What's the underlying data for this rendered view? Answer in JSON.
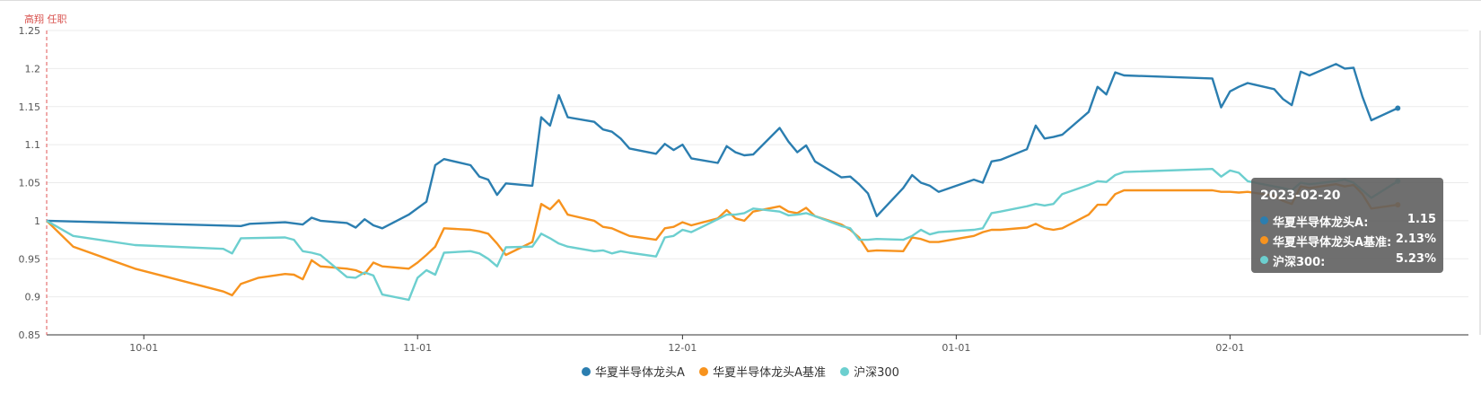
{
  "chart_data": {
    "type": "line",
    "title": "",
    "xlabel": "",
    "ylabel": "",
    "ylim": [
      0.85,
      1.25
    ],
    "yticks": [
      "1.25",
      "1.2",
      "1.15",
      "1.1",
      "1.05",
      "1",
      "0.95",
      "0.9",
      "0.85"
    ],
    "xticks": [
      "10-01",
      "11-01",
      "12-01",
      "01-01",
      "02-01"
    ],
    "xrange": [
      "2022-09-20",
      "2023-02-28"
    ],
    "grid": true,
    "legend_position": "bottom-center",
    "manager_annotation": {
      "date": "2022-09-20",
      "label": "高翔 任职"
    },
    "series": [
      {
        "name": "华夏半导体龙头A",
        "color": "#2b7eb0",
        "points": [
          [
            "2022-09-20",
            1.0
          ],
          [
            "2022-10-12",
            0.993
          ],
          [
            "2022-10-13",
            0.996
          ],
          [
            "2022-10-17",
            0.998
          ],
          [
            "2022-10-19",
            0.995
          ],
          [
            "2022-10-20",
            1.004
          ],
          [
            "2022-10-21",
            1.0
          ],
          [
            "2022-10-24",
            0.997
          ],
          [
            "2022-10-25",
            0.991
          ],
          [
            "2022-10-26",
            1.002
          ],
          [
            "2022-10-27",
            0.994
          ],
          [
            "2022-10-28",
            0.99
          ],
          [
            "2022-10-31",
            1.008
          ],
          [
            "2022-11-02",
            1.025
          ],
          [
            "2022-11-03",
            1.073
          ],
          [
            "2022-11-04",
            1.081
          ],
          [
            "2022-11-07",
            1.073
          ],
          [
            "2022-11-08",
            1.058
          ],
          [
            "2022-11-09",
            1.054
          ],
          [
            "2022-11-10",
            1.034
          ],
          [
            "2022-11-11",
            1.049
          ],
          [
            "2022-11-14",
            1.046
          ],
          [
            "2022-11-15",
            1.136
          ],
          [
            "2022-11-16",
            1.125
          ],
          [
            "2022-11-17",
            1.165
          ],
          [
            "2022-11-18",
            1.136
          ],
          [
            "2022-11-21",
            1.13
          ],
          [
            "2022-11-22",
            1.12
          ],
          [
            "2022-11-23",
            1.117
          ],
          [
            "2022-11-24",
            1.108
          ],
          [
            "2022-11-25",
            1.095
          ],
          [
            "2022-11-28",
            1.088
          ],
          [
            "2022-11-29",
            1.101
          ],
          [
            "2022-11-30",
            1.093
          ],
          [
            "2022-12-01",
            1.1
          ],
          [
            "2022-12-02",
            1.082
          ],
          [
            "2022-12-05",
            1.076
          ],
          [
            "2022-12-06",
            1.098
          ],
          [
            "2022-12-07",
            1.09
          ],
          [
            "2022-12-08",
            1.086
          ],
          [
            "2022-12-09",
            1.087
          ],
          [
            "2022-12-12",
            1.122
          ],
          [
            "2022-12-13",
            1.104
          ],
          [
            "2022-12-14",
            1.09
          ],
          [
            "2022-12-15",
            1.099
          ],
          [
            "2022-12-16",
            1.078
          ],
          [
            "2022-12-19",
            1.057
          ],
          [
            "2022-12-20",
            1.058
          ],
          [
            "2022-12-21",
            1.048
          ],
          [
            "2022-12-22",
            1.036
          ],
          [
            "2022-12-23",
            1.006
          ],
          [
            "2022-12-26",
            1.043
          ],
          [
            "2022-12-27",
            1.06
          ],
          [
            "2022-12-28",
            1.05
          ],
          [
            "2022-12-29",
            1.046
          ],
          [
            "2022-12-30",
            1.038
          ],
          [
            "2023-01-03",
            1.054
          ],
          [
            "2023-01-04",
            1.05
          ],
          [
            "2023-01-05",
            1.078
          ],
          [
            "2023-01-06",
            1.08
          ],
          [
            "2023-01-09",
            1.094
          ],
          [
            "2023-01-10",
            1.125
          ],
          [
            "2023-01-11",
            1.108
          ],
          [
            "2023-01-12",
            1.11
          ],
          [
            "2023-01-13",
            1.113
          ],
          [
            "2023-01-16",
            1.143
          ],
          [
            "2023-01-17",
            1.176
          ],
          [
            "2023-01-18",
            1.166
          ],
          [
            "2023-01-19",
            1.195
          ],
          [
            "2023-01-20",
            1.191
          ],
          [
            "2023-01-30",
            1.187
          ],
          [
            "2023-01-31",
            1.149
          ],
          [
            "2023-02-01",
            1.17
          ],
          [
            "2023-02-02",
            1.176
          ],
          [
            "2023-02-03",
            1.181
          ],
          [
            "2023-02-06",
            1.173
          ],
          [
            "2023-02-07",
            1.16
          ],
          [
            "2023-02-08",
            1.152
          ],
          [
            "2023-02-09",
            1.196
          ],
          [
            "2023-02-10",
            1.191
          ],
          [
            "2023-02-13",
            1.206
          ],
          [
            "2023-02-14",
            1.2
          ],
          [
            "2023-02-15",
            1.201
          ],
          [
            "2023-02-16",
            1.163
          ],
          [
            "2023-02-17",
            1.132
          ],
          [
            "2023-02-20",
            1.148
          ]
        ]
      },
      {
        "name": "华夏半导体龙头A基准",
        "color": "#f7931e",
        "points": [
          [
            "2022-09-20",
            1.0
          ],
          [
            "2022-09-23",
            0.966
          ],
          [
            "2022-09-30",
            0.937
          ],
          [
            "2022-10-10",
            0.907
          ],
          [
            "2022-10-11",
            0.902
          ],
          [
            "2022-10-12",
            0.917
          ],
          [
            "2022-10-14",
            0.925
          ],
          [
            "2022-10-17",
            0.93
          ],
          [
            "2022-10-18",
            0.929
          ],
          [
            "2022-10-19",
            0.923
          ],
          [
            "2022-10-20",
            0.948
          ],
          [
            "2022-10-21",
            0.94
          ],
          [
            "2022-10-24",
            0.937
          ],
          [
            "2022-10-25",
            0.935
          ],
          [
            "2022-10-26",
            0.93
          ],
          [
            "2022-10-27",
            0.945
          ],
          [
            "2022-10-28",
            0.94
          ],
          [
            "2022-10-31",
            0.937
          ],
          [
            "2022-11-01",
            0.945
          ],
          [
            "2022-11-02",
            0.955
          ],
          [
            "2022-11-03",
            0.966
          ],
          [
            "2022-11-04",
            0.99
          ],
          [
            "2022-11-07",
            0.988
          ],
          [
            "2022-11-08",
            0.986
          ],
          [
            "2022-11-09",
            0.983
          ],
          [
            "2022-11-10",
            0.97
          ],
          [
            "2022-11-11",
            0.955
          ],
          [
            "2022-11-14",
            0.972
          ],
          [
            "2022-11-15",
            1.022
          ],
          [
            "2022-11-16",
            1.015
          ],
          [
            "2022-11-17",
            1.027
          ],
          [
            "2022-11-18",
            1.008
          ],
          [
            "2022-11-21",
            1.0
          ],
          [
            "2022-11-22",
            0.992
          ],
          [
            "2022-11-23",
            0.99
          ],
          [
            "2022-11-24",
            0.985
          ],
          [
            "2022-11-25",
            0.98
          ],
          [
            "2022-11-28",
            0.975
          ],
          [
            "2022-11-29",
            0.99
          ],
          [
            "2022-11-30",
            0.992
          ],
          [
            "2022-12-01",
            0.998
          ],
          [
            "2022-12-02",
            0.994
          ],
          [
            "2022-12-05",
            1.003
          ],
          [
            "2022-12-06",
            1.014
          ],
          [
            "2022-12-07",
            1.003
          ],
          [
            "2022-12-08",
            1.0
          ],
          [
            "2022-12-09",
            1.012
          ],
          [
            "2022-12-12",
            1.019
          ],
          [
            "2022-12-13",
            1.012
          ],
          [
            "2022-12-14",
            1.01
          ],
          [
            "2022-12-15",
            1.017
          ],
          [
            "2022-12-16",
            1.006
          ],
          [
            "2022-12-19",
            0.995
          ],
          [
            "2022-12-20",
            0.988
          ],
          [
            "2022-12-21",
            0.978
          ],
          [
            "2022-12-22",
            0.96
          ],
          [
            "2022-12-23",
            0.961
          ],
          [
            "2022-12-26",
            0.96
          ],
          [
            "2022-12-27",
            0.978
          ],
          [
            "2022-12-28",
            0.976
          ],
          [
            "2022-12-29",
            0.972
          ],
          [
            "2022-12-30",
            0.972
          ],
          [
            "2023-01-03",
            0.98
          ],
          [
            "2023-01-04",
            0.985
          ],
          [
            "2023-01-05",
            0.988
          ],
          [
            "2023-01-06",
            0.988
          ],
          [
            "2023-01-09",
            0.991
          ],
          [
            "2023-01-10",
            0.996
          ],
          [
            "2023-01-11",
            0.99
          ],
          [
            "2023-01-12",
            0.988
          ],
          [
            "2023-01-13",
            0.99
          ],
          [
            "2023-01-16",
            1.008
          ],
          [
            "2023-01-17",
            1.021
          ],
          [
            "2023-01-18",
            1.021
          ],
          [
            "2023-01-19",
            1.035
          ],
          [
            "2023-01-20",
            1.04
          ],
          [
            "2023-01-30",
            1.04
          ],
          [
            "2023-01-31",
            1.038
          ],
          [
            "2023-02-01",
            1.038
          ],
          [
            "2023-02-02",
            1.037
          ],
          [
            "2023-02-03",
            1.038
          ],
          [
            "2023-02-06",
            1.033
          ],
          [
            "2023-02-07",
            1.026
          ],
          [
            "2023-02-08",
            1.022
          ],
          [
            "2023-02-09",
            1.045
          ],
          [
            "2023-02-10",
            1.043
          ],
          [
            "2023-02-13",
            1.048
          ],
          [
            "2023-02-14",
            1.045
          ],
          [
            "2023-02-15",
            1.047
          ],
          [
            "2023-02-16",
            1.035
          ],
          [
            "2023-02-17",
            1.016
          ],
          [
            "2023-02-20",
            1.021
          ]
        ]
      },
      {
        "name": "沪深300",
        "color": "#6ccfcf",
        "points": [
          [
            "2022-09-20",
            1.0
          ],
          [
            "2022-09-23",
            0.98
          ],
          [
            "2022-09-30",
            0.968
          ],
          [
            "2022-10-10",
            0.963
          ],
          [
            "2022-10-11",
            0.957
          ],
          [
            "2022-10-12",
            0.977
          ],
          [
            "2022-10-17",
            0.978
          ],
          [
            "2022-10-18",
            0.975
          ],
          [
            "2022-10-19",
            0.96
          ],
          [
            "2022-10-20",
            0.958
          ],
          [
            "2022-10-21",
            0.955
          ],
          [
            "2022-10-24",
            0.926
          ],
          [
            "2022-10-25",
            0.925
          ],
          [
            "2022-10-26",
            0.932
          ],
          [
            "2022-10-27",
            0.928
          ],
          [
            "2022-10-28",
            0.903
          ],
          [
            "2022-10-31",
            0.896
          ],
          [
            "2022-11-01",
            0.925
          ],
          [
            "2022-11-02",
            0.935
          ],
          [
            "2022-11-03",
            0.929
          ],
          [
            "2022-11-04",
            0.958
          ],
          [
            "2022-11-07",
            0.96
          ],
          [
            "2022-11-08",
            0.957
          ],
          [
            "2022-11-09",
            0.95
          ],
          [
            "2022-11-10",
            0.94
          ],
          [
            "2022-11-11",
            0.965
          ],
          [
            "2022-11-14",
            0.966
          ],
          [
            "2022-11-15",
            0.983
          ],
          [
            "2022-11-16",
            0.977
          ],
          [
            "2022-11-17",
            0.97
          ],
          [
            "2022-11-18",
            0.966
          ],
          [
            "2022-11-21",
            0.96
          ],
          [
            "2022-11-22",
            0.961
          ],
          [
            "2022-11-23",
            0.957
          ],
          [
            "2022-11-24",
            0.96
          ],
          [
            "2022-11-25",
            0.958
          ],
          [
            "2022-11-28",
            0.953
          ],
          [
            "2022-11-29",
            0.978
          ],
          [
            "2022-11-30",
            0.98
          ],
          [
            "2022-12-01",
            0.988
          ],
          [
            "2022-12-02",
            0.985
          ],
          [
            "2022-12-05",
            1.002
          ],
          [
            "2022-12-06",
            1.008
          ],
          [
            "2022-12-07",
            1.008
          ],
          [
            "2022-12-08",
            1.01
          ],
          [
            "2022-12-09",
            1.016
          ],
          [
            "2022-12-12",
            1.012
          ],
          [
            "2022-12-13",
            1.007
          ],
          [
            "2022-12-14",
            1.008
          ],
          [
            "2022-12-15",
            1.01
          ],
          [
            "2022-12-16",
            1.006
          ],
          [
            "2022-12-19",
            0.993
          ],
          [
            "2022-12-20",
            0.99
          ],
          [
            "2022-12-21",
            0.975
          ],
          [
            "2022-12-22",
            0.975
          ],
          [
            "2022-12-23",
            0.976
          ],
          [
            "2022-12-26",
            0.975
          ],
          [
            "2022-12-27",
            0.98
          ],
          [
            "2022-12-28",
            0.988
          ],
          [
            "2022-12-29",
            0.982
          ],
          [
            "2022-12-30",
            0.985
          ],
          [
            "2023-01-03",
            0.988
          ],
          [
            "2023-01-04",
            0.99
          ],
          [
            "2023-01-05",
            1.01
          ],
          [
            "2023-01-06",
            1.012
          ],
          [
            "2023-01-09",
            1.019
          ],
          [
            "2023-01-10",
            1.022
          ],
          [
            "2023-01-11",
            1.02
          ],
          [
            "2023-01-12",
            1.022
          ],
          [
            "2023-01-13",
            1.035
          ],
          [
            "2023-01-16",
            1.047
          ],
          [
            "2023-01-17",
            1.052
          ],
          [
            "2023-01-18",
            1.051
          ],
          [
            "2023-01-19",
            1.06
          ],
          [
            "2023-01-20",
            1.064
          ],
          [
            "2023-01-30",
            1.068
          ],
          [
            "2023-01-31",
            1.058
          ],
          [
            "2023-02-01",
            1.066
          ],
          [
            "2023-02-02",
            1.063
          ],
          [
            "2023-02-03",
            1.052
          ],
          [
            "2023-02-06",
            1.045
          ],
          [
            "2023-02-07",
            1.043
          ],
          [
            "2023-02-08",
            1.04
          ],
          [
            "2023-02-09",
            1.05
          ],
          [
            "2023-02-10",
            1.048
          ],
          [
            "2023-02-13",
            1.052
          ],
          [
            "2023-02-14",
            1.054
          ],
          [
            "2023-02-15",
            1.05
          ],
          [
            "2023-02-16",
            1.04
          ],
          [
            "2023-02-17",
            1.03
          ],
          [
            "2023-02-20",
            1.052
          ]
        ]
      }
    ]
  },
  "tooltip": {
    "date": "2023-02-20",
    "rows": [
      {
        "label": "华夏半导体龙头A:",
        "value": "1.15",
        "color": "#2b7eb0"
      },
      {
        "label": "华夏半导体龙头A基准:",
        "value": "2.13%",
        "color": "#f7931e"
      },
      {
        "label": "沪深300:",
        "value": "5.23%",
        "color": "#6ccfcf"
      }
    ]
  }
}
